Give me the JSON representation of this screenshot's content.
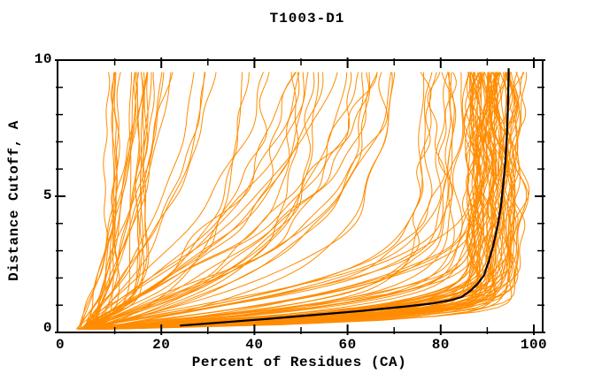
{
  "chart_data": {
    "type": "line",
    "title": "T1003-D1",
    "xlabel": "Percent of Residues (CA)",
    "ylabel": "Distance Cutoff, A",
    "xlim": [
      0,
      100
    ],
    "ylim": [
      0,
      10
    ],
    "grid": false,
    "legend": "none",
    "axis_color": "#000000",
    "background_color": "#ffffff",
    "x_major_ticks": [
      0,
      20,
      40,
      60,
      80,
      100
    ],
    "x_tick_labels": [
      "0",
      "20",
      "40",
      "60",
      "80",
      "100"
    ],
    "x_minor_ticks": [
      10,
      30,
      50,
      70,
      90
    ],
    "y_major_ticks": [
      0,
      5,
      10
    ],
    "y_tick_labels": [
      "0",
      "5",
      "10"
    ],
    "y_minor_ticks": [
      1,
      2,
      3,
      4,
      6,
      7,
      8,
      9
    ],
    "tick_style": "mirrored-inward",
    "highlight_series": {
      "name": "highlighted-model-curve",
      "color": "#000000",
      "points": [
        [
          24,
          0.25
        ],
        [
          34,
          0.38
        ],
        [
          43,
          0.5
        ],
        [
          50,
          0.6
        ],
        [
          57,
          0.7
        ],
        [
          63,
          0.79
        ],
        [
          67,
          0.86
        ],
        [
          73,
          0.96
        ],
        [
          78,
          1.06
        ],
        [
          82,
          1.18
        ],
        [
          84.5,
          1.3
        ],
        [
          86.5,
          1.55
        ],
        [
          88,
          1.8
        ],
        [
          89.3,
          2.1
        ],
        [
          90.3,
          2.6
        ],
        [
          91.3,
          3.2
        ],
        [
          92.2,
          3.9
        ],
        [
          92.9,
          4.6
        ],
        [
          93.4,
          5.4
        ],
        [
          93.9,
          6.3
        ],
        [
          94.2,
          7.2
        ],
        [
          94.4,
          8.0
        ],
        [
          94.5,
          8.8
        ],
        [
          94.6,
          9.7
        ]
      ]
    },
    "ensemble": {
      "name": "all-prediction-curves",
      "color": "#ff8c00",
      "curve_count": 135,
      "cutoff_range": [
        0.12,
        9.7
      ],
      "start_percent_range": [
        1.5,
        6
      ],
      "seed": 1003,
      "groups": [
        {
          "name": "top-cluster",
          "count": 58,
          "final_percent": [
            86,
            97.5
          ],
          "rise_scale": [
            0.28,
            0.75
          ],
          "shape_exp": [
            1.0,
            1.5
          ]
        },
        {
          "name": "good",
          "count": 22,
          "final_percent": [
            76,
            92
          ],
          "rise_scale": [
            0.8,
            1.8
          ],
          "shape_exp": [
            1.0,
            1.4
          ]
        },
        {
          "name": "middle",
          "count": 28,
          "final_percent": [
            34,
            78
          ],
          "rise_scale": [
            1.8,
            5.5
          ],
          "shape_exp": [
            0.9,
            1.3
          ]
        },
        {
          "name": "steep-slow",
          "count": 15,
          "final_percent": [
            12,
            34
          ],
          "rise_scale": [
            3.5,
            9.0
          ],
          "shape_exp": [
            1.0,
            1.3
          ]
        },
        {
          "name": "vertical-poor",
          "count": 12,
          "final_percent": [
            7,
            18
          ],
          "rise_scale": [
            0.3,
            1.2
          ],
          "shape_exp": [
            1.0,
            1.6
          ]
        }
      ],
      "ensemble_envelope": {
        "cutoffs": [
          0.25,
          0.5,
          1.0,
          2.0,
          5.0,
          9.7
        ],
        "min_percent": [
          1,
          2,
          4,
          6,
          8,
          9
        ],
        "max_percent": [
          45,
          70,
          88,
          95,
          98,
          99
        ]
      }
    }
  }
}
